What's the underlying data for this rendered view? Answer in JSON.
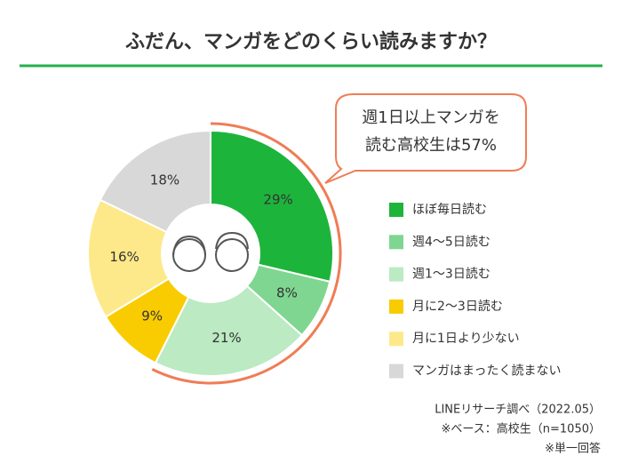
{
  "chart_data": {
    "type": "donut",
    "title": "ふだん、マンガをどのくらい読みますか？",
    "callout": [
      "週1日以上マンガを",
      "読む高校生は57%"
    ],
    "categories": [
      "ほぼ毎日読む",
      "週4～5日読む",
      "週1～3日読む",
      "月に2～3日読む",
      "月に1日より少ない",
      "マンガはまったく読まない"
    ],
    "values": [
      29,
      8,
      21,
      9,
      16,
      18
    ],
    "value_labels": [
      "29%",
      "8%",
      "21%",
      "9%",
      "16%",
      "18%"
    ],
    "colors": [
      "#1db43c",
      "#7fd690",
      "#bbeac3",
      "#f8cc00",
      "#fde98a",
      "#d8d8d8"
    ],
    "notes": [
      "LINEリサーチ調べ（2022.05）",
      "※ベース：高校生（n=1050）",
      "※単一回答"
    ]
  }
}
